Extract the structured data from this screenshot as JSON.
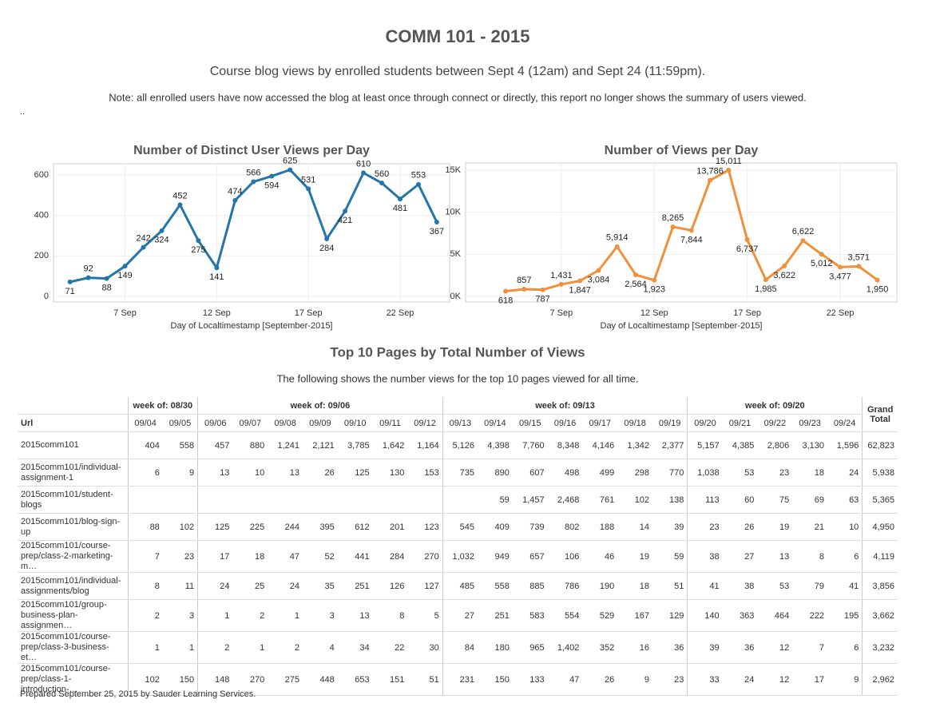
{
  "header": {
    "title": "COMM 101 - 2015",
    "subtitle": "Course blog views by enrolled students between Sept 4 (12am) and Sept 24 (11:59pm).",
    "note": "Note: all enrolled users have now accessed the blog at least once through connect or directly, this report no longer shows the summary of users viewed.",
    "dots": ".."
  },
  "chart_data": [
    {
      "type": "line",
      "title": "Number of Distinct User Views per Day",
      "x_label": "Day of Localtimestamp [September-2015]",
      "color": "#2376a6",
      "x": [
        4,
        5,
        6,
        7,
        8,
        9,
        10,
        11,
        12,
        13,
        14,
        15,
        16,
        17,
        18,
        19,
        20,
        21,
        22,
        23,
        24
      ],
      "values": [
        71,
        92,
        88,
        149,
        242,
        324,
        452,
        275,
        141,
        474,
        566,
        594,
        625,
        531,
        284,
        421,
        610,
        560,
        481,
        553,
        367
      ],
      "xlim": [
        3.1,
        24.7
      ],
      "xticks": [
        {
          "value": 7,
          "label": "7 Sep"
        },
        {
          "value": 12,
          "label": "12 Sep"
        },
        {
          "value": 17,
          "label": "17 Sep"
        },
        {
          "value": 22,
          "label": "22 Sep"
        }
      ],
      "ylim": [
        -28,
        655
      ],
      "yticks": [
        0,
        200,
        400,
        600
      ],
      "grid": true
    },
    {
      "type": "line",
      "title": "Number of Views per Day",
      "x_label": "Day of Localtimestamp [September-2015]",
      "color": "#f0903a",
      "x": [
        4,
        5,
        6,
        7,
        8,
        9,
        10,
        11,
        12,
        13,
        14,
        15,
        16,
        17,
        18,
        19,
        20,
        21,
        22,
        23,
        24
      ],
      "values": [
        618,
        857,
        787,
        1431,
        1847,
        3084,
        5914,
        2564,
        1923,
        8265,
        7844,
        13786,
        15011,
        6737,
        1985,
        3622,
        6622,
        5012,
        3477,
        3571,
        1950
      ],
      "value_labels": [
        "618",
        "857",
        "787",
        "1,431",
        "1,847",
        "3,084",
        "5,914",
        "2,564",
        "1,923",
        "8,265",
        "7,844",
        "13,786",
        "15,011",
        "6,737",
        "1,985",
        "3,622",
        "6,622",
        "5,012",
        "3,477",
        "3,571",
        "1,950"
      ],
      "xlim": [
        1.85,
        25.05
      ],
      "xticks": [
        {
          "value": 7,
          "label": "7 Sep"
        },
        {
          "value": 12,
          "label": "12 Sep"
        },
        {
          "value": 17,
          "label": "17 Sep"
        },
        {
          "value": 22,
          "label": "22 Sep"
        }
      ],
      "ylim": [
        -665,
        15855
      ],
      "yticks": [
        {
          "value": 0,
          "label": "0K"
        },
        {
          "value": 5000,
          "label": "5K"
        },
        {
          "value": 10000,
          "label": "10K"
        },
        {
          "value": 15000,
          "label": "15K"
        }
      ],
      "grid": true
    }
  ],
  "table": {
    "title": "Top 10 Pages by Total Number of Views",
    "subtitle": "The following shows the number views for the top 10 pages viewed for all time.",
    "url_header": "Url",
    "total_header": "Grand Total",
    "weeks": [
      {
        "label": "week of: 08/30",
        "dates": [
          "09/04",
          "09/05"
        ]
      },
      {
        "label": "week of: 09/06",
        "dates": [
          "09/06",
          "09/07",
          "09/08",
          "09/09",
          "09/10",
          "09/11",
          "09/12"
        ]
      },
      {
        "label": "week of: 09/13",
        "dates": [
          "09/13",
          "09/14",
          "09/15",
          "09/16",
          "09/17",
          "09/18",
          "09/19"
        ]
      },
      {
        "label": "week of: 09/20",
        "dates": [
          "09/20",
          "09/21",
          "09/22",
          "09/23",
          "09/24"
        ]
      }
    ],
    "rows": [
      {
        "url": "2015comm101",
        "cells": [
          "404",
          "558",
          "457",
          "880",
          "1,241",
          "2,121",
          "3,785",
          "1,642",
          "1,164",
          "5,126",
          "4,398",
          "7,760",
          "8,348",
          "4,146",
          "1,342",
          "2,377",
          "5,157",
          "4,385",
          "2,806",
          "3,130",
          "1,596"
        ],
        "total": "62,823"
      },
      {
        "url": "2015comm101/individual-assignment-1",
        "cells": [
          "6",
          "9",
          "13",
          "10",
          "13",
          "26",
          "125",
          "130",
          "153",
          "735",
          "890",
          "607",
          "498",
          "499",
          "298",
          "770",
          "1,038",
          "53",
          "23",
          "18",
          "24"
        ],
        "total": "5,938"
      },
      {
        "url": "2015comm101/student-blogs",
        "cells": [
          null,
          null,
          null,
          null,
          null,
          null,
          null,
          null,
          null,
          null,
          "59",
          "1,457",
          "2,468",
          "761",
          "102",
          "138",
          "113",
          "60",
          "75",
          "69",
          "63"
        ],
        "total": "5,365"
      },
      {
        "url": "2015comm101/blog-sign-up",
        "cells": [
          "88",
          "102",
          "125",
          "225",
          "244",
          "395",
          "612",
          "201",
          "123",
          "545",
          "409",
          "739",
          "802",
          "188",
          "14",
          "39",
          "23",
          "26",
          "19",
          "21",
          "10"
        ],
        "total": "4,950"
      },
      {
        "url": "2015comm101/course-prep/class-2-marketing-m…",
        "cells": [
          "7",
          "23",
          "17",
          "18",
          "47",
          "52",
          "441",
          "284",
          "270",
          "1,032",
          "949",
          "657",
          "106",
          "46",
          "19",
          "59",
          "38",
          "27",
          "13",
          "8",
          "6"
        ],
        "total": "4,119"
      },
      {
        "url": "2015comm101/individual-assignments/blog",
        "cells": [
          "8",
          "11",
          "24",
          "25",
          "24",
          "35",
          "251",
          "126",
          "127",
          "485",
          "558",
          "885",
          "786",
          "190",
          "18",
          "51",
          "41",
          "38",
          "53",
          "79",
          "41"
        ],
        "total": "3,856"
      },
      {
        "url": "2015comm101/group-business-plan-assignmen…",
        "cells": [
          "2",
          "3",
          "1",
          "2",
          "1",
          "3",
          "13",
          "8",
          "5",
          "27",
          "251",
          "583",
          "554",
          "529",
          "167",
          "129",
          "140",
          "363",
          "464",
          "222",
          "195"
        ],
        "total": "3,662"
      },
      {
        "url": "2015comm101/course-prep/class-3-business-et…",
        "cells": [
          "1",
          "1",
          "2",
          "1",
          "2",
          "4",
          "34",
          "22",
          "30",
          "84",
          "180",
          "965",
          "1,402",
          "352",
          "16",
          "36",
          "39",
          "36",
          "12",
          "7",
          "6"
        ],
        "total": "3,232"
      },
      {
        "url": "2015comm101/course-prep/class-1-introduction-…",
        "cells": [
          "102",
          "150",
          "148",
          "270",
          "275",
          "448",
          "653",
          "151",
          "51",
          "231",
          "150",
          "133",
          "47",
          "26",
          "9",
          "23",
          "33",
          "24",
          "12",
          "17",
          "9"
        ],
        "total": "2,962"
      }
    ]
  },
  "footer": "Prepared September 25, 2015 by Sauder Learning Services."
}
